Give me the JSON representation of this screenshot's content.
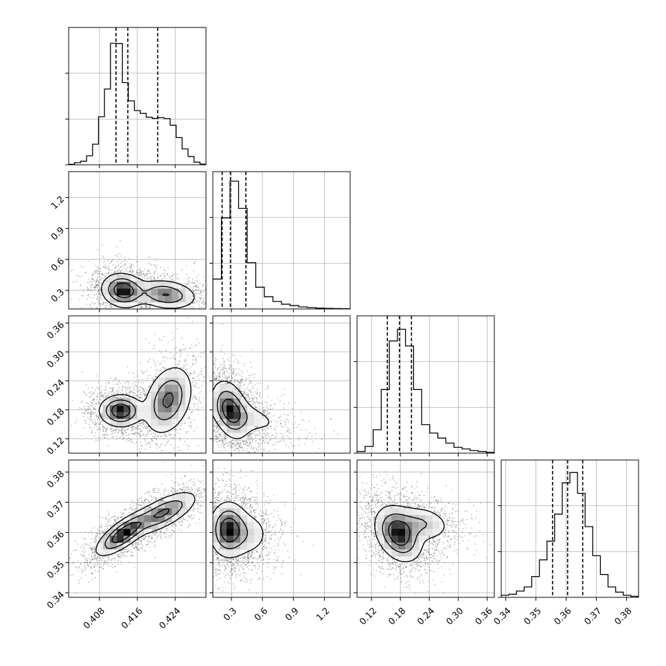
{
  "chart_data": {
    "type": "corner",
    "layout": "lower-triangle 4x4 grid",
    "grid": true,
    "parameters": [
      {
        "id": "p0",
        "ticks": [
          "0.408",
          "0.416",
          "0.424"
        ],
        "range": [
          0.4015,
          0.4305
        ],
        "quantiles": [
          0.4115,
          0.414,
          0.4203
        ],
        "hist": [
          0.2,
          0.9,
          1.5,
          3.8,
          8.7,
          20.3,
          32.0,
          51.3,
          51.2,
          34.7,
          27.0,
          22.9,
          21.7,
          20.1,
          19.6,
          19.9,
          19.5,
          16.7,
          11.5,
          6.7,
          3.5,
          1.1,
          0.3
        ],
        "hist_ylim": [
          0,
          58
        ]
      },
      {
        "id": "p1",
        "ticks": [
          "0.3",
          "0.6",
          "0.9",
          "1.2"
        ],
        "range": [
          0.12,
          1.45
        ],
        "quantiles": [
          0.21,
          0.29,
          0.44
        ],
        "hist": [
          22,
          67,
          94,
          74,
          34,
          16,
          9,
          5.5,
          3.5,
          2.5,
          1.5,
          1,
          0.6,
          0.4,
          0.3,
          0.2
        ],
        "hist_ylim": [
          0,
          101
        ]
      },
      {
        "id": "p2",
        "ticks": [
          "0.12",
          "0.18",
          "0.24",
          "0.30",
          "0.36"
        ],
        "range": [
          0.09,
          0.375
        ],
        "quantiles": [
          0.153,
          0.178,
          0.203
        ],
        "hist": [
          1,
          4,
          14,
          38,
          67,
          74,
          64,
          38,
          17,
          12,
          9,
          6,
          3.5,
          2.5,
          1.5,
          1,
          0.5
        ],
        "hist_ylim": [
          0,
          82
        ]
      },
      {
        "id": "p3",
        "ticks": [
          "0.34",
          "0.35",
          "0.36",
          "0.37",
          "0.38"
        ],
        "range": [
          0.3385,
          0.384
        ],
        "quantiles": [
          0.3555,
          0.3605,
          0.3655
        ],
        "hist": [
          1,
          1.5,
          3,
          5,
          10,
          18,
          27,
          40,
          55,
          60,
          50,
          34,
          20,
          11,
          5,
          2.5,
          1,
          0.5
        ],
        "hist_ylim": [
          0,
          66
        ]
      }
    ],
    "joint_peaks": [
      {
        "x": "p0",
        "y": "p1",
        "peak": [
          0.413,
          0.29
        ],
        "secondary": [
          0.422,
          0.25
        ]
      },
      {
        "x": "p0",
        "y": "p2",
        "peak": [
          0.4125,
          0.178
        ],
        "secondary": [
          0.4225,
          0.205
        ]
      },
      {
        "x": "p1",
        "y": "p2",
        "peak": [
          0.29,
          0.178
        ]
      },
      {
        "x": "p0",
        "y": "p3",
        "peak": [
          0.413,
          0.3595
        ],
        "trend": "positive correlation"
      },
      {
        "x": "p1",
        "y": "p3",
        "peak": [
          0.27,
          0.361
        ]
      },
      {
        "x": "p2",
        "y": "p3",
        "peak": [
          0.178,
          0.3595
        ]
      }
    ]
  }
}
